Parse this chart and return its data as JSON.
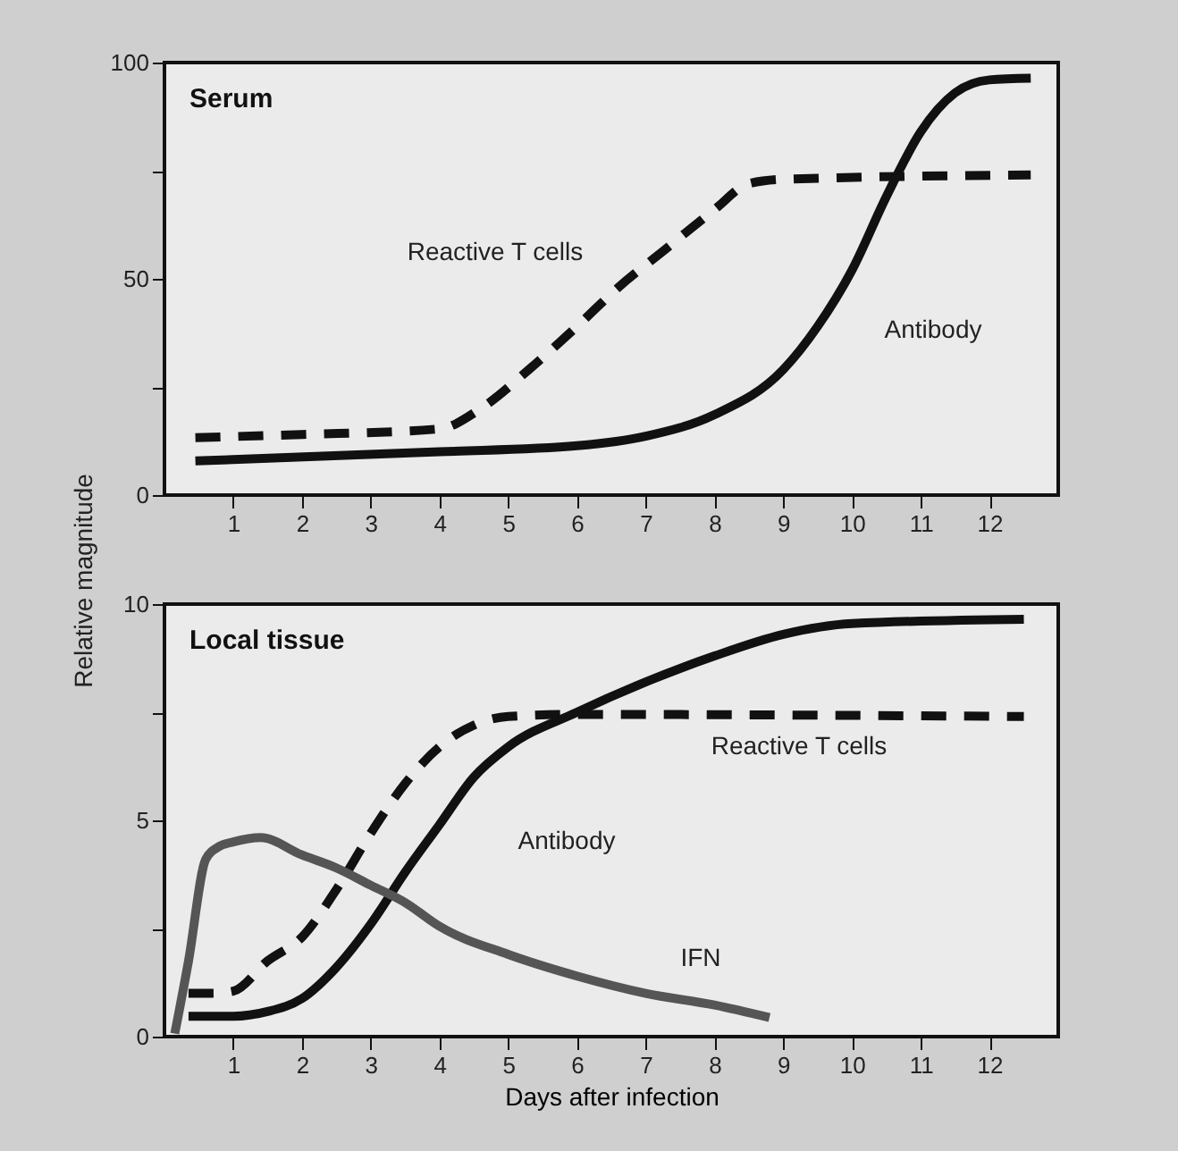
{
  "chart_data": [
    {
      "type": "line",
      "title": "Serum",
      "ylabel": "Relative magnitude",
      "xlim": [
        0,
        13
      ],
      "xticks": [
        1,
        2,
        3,
        4,
        5,
        6,
        7,
        8,
        9,
        10,
        11,
        12
      ],
      "ylim": [
        0,
        100
      ],
      "yticks": [
        0,
        {
          "value": 25,
          "label": null
        },
        50,
        {
          "value": 75,
          "label": null
        },
        100
      ],
      "series": [
        {
          "name": "Reactive T cells",
          "color": "#111111",
          "line_style": "dashed",
          "x": [
            0.45,
            2,
            4,
            4.6,
            5.3,
            6,
            6.6,
            7.3,
            8,
            8.5,
            9,
            12.6
          ],
          "values": [
            13.3,
            14,
            15.3,
            20,
            29,
            39,
            48,
            57,
            66,
            72,
            73,
            74
          ]
        },
        {
          "name": "Antibody",
          "color": "#111111",
          "line_style": "solid",
          "x": [
            0.45,
            4,
            6,
            7,
            8,
            9,
            9.5,
            10,
            10.5,
            11,
            11.5,
            12,
            12.6
          ],
          "values": [
            7.9,
            10,
            11.4,
            13.6,
            18.6,
            29,
            39,
            52,
            69,
            84,
            93,
            96,
            96.4
          ]
        }
      ]
    },
    {
      "type": "line",
      "title": "Local tissue",
      "xlabel": "Days after infection",
      "xlim": [
        0,
        13
      ],
      "xticks": [
        1,
        2,
        3,
        4,
        5,
        6,
        7,
        8,
        9,
        10,
        11,
        12
      ],
      "ylim": [
        0,
        10
      ],
      "yticks": [
        0,
        {
          "value": 2.5,
          "label": null
        },
        5,
        {
          "value": 7.5,
          "label": null
        },
        10
      ],
      "series": [
        {
          "name": "Reactive T cells",
          "color": "#111111",
          "line_style": "dashed",
          "x": [
            0.35,
            0.7,
            1,
            1.5,
            2,
            2.5,
            3,
            3.5,
            4,
            4.5,
            5,
            6,
            12.5
          ],
          "values": [
            1,
            1,
            1.05,
            1.75,
            2.3,
            3.4,
            4.7,
            5.85,
            6.7,
            7.2,
            7.4,
            7.45,
            7.4
          ]
        },
        {
          "name": "Antibody",
          "color": "#111111",
          "line_style": "solid",
          "x": [
            0.35,
            1,
            1.5,
            2,
            2.5,
            3,
            3.5,
            4,
            4.5,
            5,
            6,
            7,
            8,
            9,
            10,
            12.5
          ],
          "values": [
            0.47,
            0.47,
            0.58,
            0.88,
            1.6,
            2.6,
            3.8,
            4.9,
            6,
            6.7,
            7.5,
            8.2,
            8.8,
            9.3,
            9.55,
            9.65
          ]
        },
        {
          "name": "IFN",
          "color": "#555555",
          "line_style": "solid",
          "x": [
            0.15,
            0.35,
            0.6,
            0.8,
            1,
            1.4,
            2,
            2.5,
            3,
            3.5,
            4,
            5,
            6,
            7,
            8,
            8.8
          ],
          "values": [
            0.07,
            1.75,
            4.1,
            4.4,
            4.5,
            4.6,
            4.2,
            3.9,
            3.5,
            3.1,
            2.55,
            1.9,
            1.4,
            1,
            0.73,
            0.44
          ]
        }
      ]
    }
  ]
}
